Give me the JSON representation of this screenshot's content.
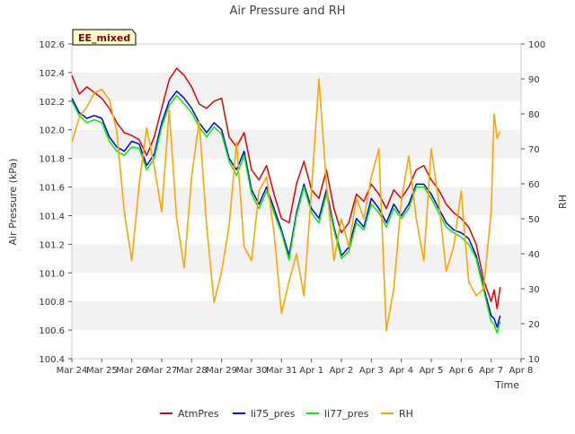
{
  "chart_data": {
    "type": "line",
    "title": "Air Pressure and RH",
    "site_badge": "EE_mixed",
    "xlabel": "Time",
    "ylabel_left": "Air Pressure (kPa)",
    "ylabel_right": "RH",
    "x_ticks": [
      "Mar 24",
      "Mar 25",
      "Mar 26",
      "Mar 27",
      "Mar 28",
      "Mar 29",
      "Mar 30",
      "Mar 31",
      "Apr 1",
      "Apr 2",
      "Apr 3",
      "Apr 4",
      "Apr 5",
      "Apr 6",
      "Apr 7",
      "Apr 8"
    ],
    "ylim_left": [
      100.4,
      102.6
    ],
    "y_ticks_left": [
      "100.4",
      "100.6",
      "100.8",
      "101.0",
      "101.2",
      "101.4",
      "101.6",
      "101.8",
      "102.0",
      "102.2",
      "102.4",
      "102.6"
    ],
    "ylim_right": [
      10,
      100
    ],
    "y_ticks_right": [
      "10",
      "20",
      "30",
      "40",
      "50",
      "60",
      "70",
      "80",
      "90",
      "100"
    ],
    "grid": "horizontal bands",
    "legend_position": "bottom",
    "x_days": [
      0,
      0.25,
      0.5,
      0.75,
      1,
      1.25,
      1.5,
      1.75,
      2,
      2.25,
      2.5,
      2.75,
      3,
      3.25,
      3.5,
      3.75,
      4,
      4.25,
      4.5,
      4.75,
      5,
      5.25,
      5.5,
      5.75,
      6,
      6.25,
      6.5,
      6.75,
      7,
      7.25,
      7.5,
      7.75,
      8,
      8.25,
      8.5,
      8.75,
      9,
      9.25,
      9.5,
      9.75,
      10,
      10.25,
      10.5,
      10.75,
      11,
      11.25,
      11.5,
      11.75,
      12,
      12.25,
      12.5,
      12.75,
      13,
      13.25,
      13.5,
      13.75,
      14,
      14.1,
      14.2,
      14.3
    ],
    "series": [
      {
        "name": "AtmPres",
        "color": "#e00000",
        "axis": "left",
        "values": [
          102.38,
          102.25,
          102.3,
          102.26,
          102.22,
          102.15,
          102.05,
          101.98,
          101.96,
          101.93,
          101.82,
          101.95,
          102.15,
          102.35,
          102.43,
          102.38,
          102.3,
          102.18,
          102.15,
          102.2,
          102.22,
          101.95,
          101.88,
          101.98,
          101.72,
          101.65,
          101.75,
          101.55,
          101.38,
          101.35,
          101.62,
          101.78,
          101.58,
          101.52,
          101.72,
          101.45,
          101.28,
          101.35,
          101.55,
          101.5,
          101.62,
          101.55,
          101.45,
          101.58,
          101.52,
          101.6,
          101.72,
          101.75,
          101.65,
          101.58,
          101.48,
          101.42,
          101.38,
          101.32,
          101.2,
          100.95,
          100.8,
          100.88,
          100.75,
          100.9
        ]
      },
      {
        "name": "li75_pres",
        "color": "#0000ee",
        "axis": "left",
        "values": [
          102.22,
          102.12,
          102.08,
          102.1,
          102.08,
          101.95,
          101.88,
          101.85,
          101.92,
          101.9,
          101.75,
          101.83,
          102.05,
          102.2,
          102.27,
          102.22,
          102.15,
          102.05,
          101.98,
          102.05,
          102.0,
          101.8,
          101.72,
          101.85,
          101.58,
          101.48,
          101.6,
          101.45,
          101.3,
          101.12,
          101.42,
          101.62,
          101.45,
          101.38,
          101.58,
          101.32,
          101.12,
          101.18,
          101.38,
          101.32,
          101.52,
          101.45,
          101.35,
          101.48,
          101.4,
          101.48,
          101.62,
          101.62,
          101.55,
          101.45,
          101.35,
          101.3,
          101.28,
          101.24,
          101.12,
          100.9,
          100.7,
          100.68,
          100.62,
          100.7
        ]
      },
      {
        "name": "li77_pres",
        "color": "#00ee00",
        "axis": "left",
        "values": [
          102.2,
          102.1,
          102.05,
          102.07,
          102.05,
          101.92,
          101.85,
          101.82,
          101.88,
          101.87,
          101.72,
          101.8,
          102.02,
          102.17,
          102.24,
          102.18,
          102.12,
          102.02,
          101.95,
          102.02,
          101.97,
          101.78,
          101.68,
          101.82,
          101.55,
          101.45,
          101.57,
          101.42,
          101.28,
          101.09,
          101.4,
          101.6,
          101.42,
          101.35,
          101.55,
          101.3,
          101.1,
          101.15,
          101.35,
          101.3,
          101.48,
          101.42,
          101.32,
          101.45,
          101.38,
          101.45,
          101.6,
          101.6,
          101.52,
          101.42,
          101.32,
          101.28,
          101.25,
          101.2,
          101.1,
          100.88,
          100.66,
          100.64,
          100.58,
          100.66
        ]
      },
      {
        "name": "RH",
        "color": "#ffa500",
        "axis": "right",
        "values": [
          72,
          79,
          82,
          86,
          87,
          84,
          75,
          52,
          38,
          60,
          76,
          65,
          52,
          81,
          50,
          36,
          62,
          78,
          48,
          26,
          35,
          48,
          72,
          42,
          38,
          58,
          62,
          46,
          23,
          32,
          40,
          28,
          58,
          90,
          60,
          38,
          50,
          42,
          56,
          50,
          62,
          70,
          18,
          30,
          55,
          68,
          50,
          38,
          70,
          55,
          35,
          42,
          58,
          32,
          28,
          30,
          52,
          80,
          73,
          75
        ]
      }
    ]
  }
}
